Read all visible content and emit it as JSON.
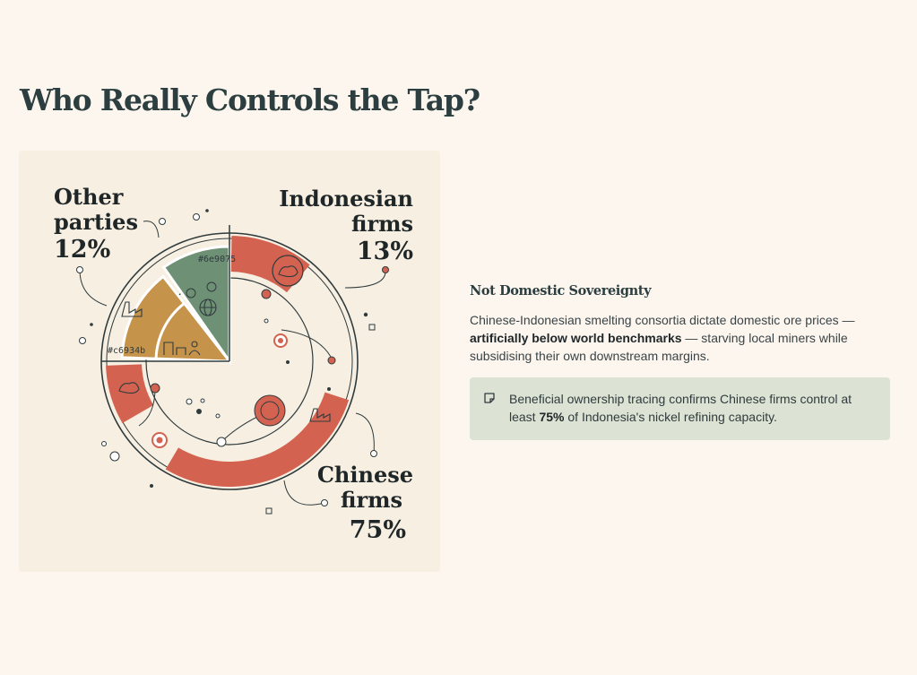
{
  "page": {
    "title": "Who Really Controls the Tap?"
  },
  "chart_data": {
    "type": "pie",
    "title": "Who Really Controls the Tap?",
    "categories": [
      "Chinese firms",
      "Indonesian firms",
      "Other parties"
    ],
    "values": [
      75,
      13,
      12
    ],
    "unit": "%",
    "colors": {
      "chinese": "#d36350",
      "indonesian": "#6e9075",
      "other": "#c6934b",
      "ink": "#2f3b3d",
      "accent_red": "#d36350"
    },
    "labels": {
      "other_line1": "Other",
      "other_line2": "parties",
      "other_pct": "12%",
      "indo_line1": "Indonesian",
      "indo_line2": "firms",
      "indo_pct": "13%",
      "chinese_line1": "Chinese",
      "chinese_line2": "firms",
      "chinese_pct": "75%"
    },
    "annotations": {
      "green_hex": "#6e9075",
      "gold_hex": "#c6934b"
    }
  },
  "sidebar": {
    "heading": "Not Domestic Sovereignty",
    "body_pre": "Chinese-Indonesian smelting consortia dictate domestic ore prices — ",
    "body_bold": "artificially below world benchmarks",
    "body_post": " — starving local miners while subsidising their own downstream margins.",
    "callout_pre": "Beneficial ownership tracing confirms Chinese firms control at least ",
    "callout_bold": "75%",
    "callout_post": " of Indonesia's nickel refining capacity.",
    "callout_icon": "note-icon"
  }
}
